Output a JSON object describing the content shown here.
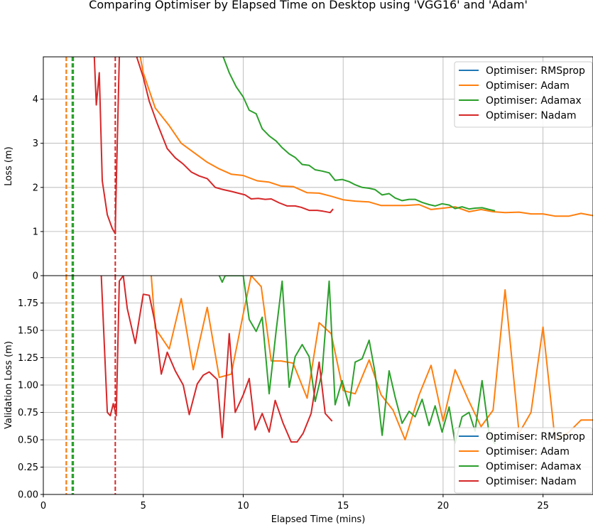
{
  "chart_data": {
    "type": "line",
    "title": "Comparing Optimiser by Elapsed Time on Desktop using 'VGG16' and 'Adam'",
    "xlabel": "Elapsed Time (mins)",
    "xlim": [
      0,
      27.5
    ],
    "x_ticks": [
      "0",
      "5",
      "10",
      "15",
      "20",
      "25"
    ],
    "grid": true,
    "colors": {
      "Optimiser: RMSprop": "#1f77b4",
      "Optimiser: Adam": "#ff7f0e",
      "Optimiser: Adamax": "#2ca02c",
      "Optimiser: Nadam": "#d62728"
    },
    "vlines": [
      {
        "series": "Optimiser: RMSprop",
        "x": 1.15,
        "style": "dashed"
      },
      {
        "series": "Optimiser: Adam",
        "x": 1.15,
        "style": "dashed"
      },
      {
        "series": "Optimiser: Adam",
        "x": 1.45,
        "style": "dashed"
      },
      {
        "series": "Optimiser: Adamax",
        "x": 1.45,
        "style": "dashed"
      },
      {
        "series": "Optimiser: Adamax",
        "x": 1.5,
        "style": "dashed"
      },
      {
        "series": "Optimiser: Nadam",
        "x": 3.6,
        "style": "dashed"
      }
    ],
    "panels": [
      {
        "ylabel": "Loss (m)",
        "ylim": [
          0,
          4.96
        ],
        "y_ticks": [
          "0",
          "1",
          "2",
          "3",
          "4"
        ],
        "legend": "top-right",
        "series": [
          {
            "name": "Optimiser: RMSprop",
            "x": [],
            "y": []
          },
          {
            "name": "Optimiser: Adam",
            "x": [
              4.85,
              5.0,
              5.6,
              6.3,
              6.9,
              7.5,
              8.2,
              8.8,
              9.4,
              10.0,
              10.7,
              11.3,
              11.9,
              12.5,
              13.2,
              13.8,
              14.4,
              15.0,
              15.6,
              16.3,
              16.9,
              17.5,
              18.1,
              18.8,
              19.4,
              20.0,
              20.6,
              21.3,
              21.9,
              22.5,
              23.1,
              23.8,
              24.4,
              25.0,
              25.6,
              26.3,
              26.9,
              27.5
            ],
            "y": [
              4.96,
              4.6,
              3.8,
              3.4,
              3.0,
              2.8,
              2.57,
              2.42,
              2.3,
              2.27,
              2.15,
              2.12,
              2.03,
              2.02,
              1.88,
              1.87,
              1.8,
              1.72,
              1.69,
              1.67,
              1.59,
              1.59,
              1.59,
              1.61,
              1.5,
              1.53,
              1.56,
              1.45,
              1.5,
              1.45,
              1.43,
              1.44,
              1.4,
              1.4,
              1.35,
              1.35,
              1.41,
              1.36
            ]
          },
          {
            "name": "Optimiser: Adamax",
            "x": [
              9.0,
              9.3,
              9.65,
              10.0,
              10.3,
              10.65,
              10.95,
              11.3,
              11.65,
              11.95,
              12.3,
              12.6,
              12.95,
              13.3,
              13.6,
              13.95,
              14.3,
              14.6,
              14.95,
              15.3,
              15.6,
              15.95,
              16.3,
              16.6,
              16.95,
              17.3,
              17.6,
              17.95,
              18.3,
              18.6,
              18.95,
              19.3,
              19.6,
              19.95,
              20.3,
              20.6,
              20.95,
              21.3,
              21.6,
              21.95,
              22.3,
              22.6
            ],
            "y": [
              4.96,
              4.6,
              4.28,
              4.05,
              3.75,
              3.67,
              3.33,
              3.17,
              3.05,
              2.9,
              2.76,
              2.68,
              2.52,
              2.5,
              2.4,
              2.37,
              2.33,
              2.16,
              2.18,
              2.13,
              2.06,
              2.0,
              1.98,
              1.95,
              1.83,
              1.86,
              1.76,
              1.7,
              1.73,
              1.73,
              1.66,
              1.61,
              1.58,
              1.63,
              1.6,
              1.52,
              1.56,
              1.51,
              1.53,
              1.54,
              1.5,
              1.47
            ]
          },
          {
            "name": "Optimiser: Nadam",
            "x": [
              2.55,
              2.65,
              2.8,
              2.95,
              3.2,
              3.45,
              3.6,
              3.62,
              3.8,
              4.0,
              4.5,
              5.0,
              5.3,
              5.7,
              6.2,
              6.6,
              7.0,
              7.4,
              7.8,
              8.2,
              8.6,
              9.0,
              9.4,
              9.75,
              10.1,
              10.4,
              10.75,
              11.1,
              11.4,
              11.8,
              12.2,
              12.6,
              12.9,
              13.3,
              13.7,
              14.0,
              14.35,
              14.5
            ],
            "y": [
              4.96,
              3.87,
              4.6,
              2.15,
              1.38,
              1.07,
              0.95,
              1.5,
              4.96,
              5.5,
              5.2,
              4.5,
              3.95,
              3.45,
              2.88,
              2.67,
              2.53,
              2.35,
              2.26,
              2.2,
              2.0,
              1.95,
              1.91,
              1.87,
              1.83,
              1.74,
              1.75,
              1.73,
              1.74,
              1.65,
              1.58,
              1.58,
              1.55,
              1.48,
              1.48,
              1.46,
              1.43,
              1.51
            ]
          }
        ]
      },
      {
        "ylabel": "Validation Loss (m)",
        "ylim": [
          0,
          2.0
        ],
        "y_ticks": [
          "0.00",
          "0.25",
          "0.50",
          "0.75",
          "1.00",
          "1.25",
          "1.50",
          "1.75"
        ],
        "legend": "bottom-right",
        "series": [
          {
            "name": "Optimiser: RMSprop",
            "x": [],
            "y": []
          },
          {
            "name": "Optimiser: Adam",
            "x": [
              5.4,
              5.6,
              6.3,
              6.9,
              7.5,
              8.2,
              8.8,
              9.4,
              10.0,
              10.4,
              10.9,
              11.4,
              11.9,
              12.5,
              13.2,
              13.8,
              14.4,
              15.0,
              15.6,
              16.3,
              16.9,
              17.5,
              18.1,
              18.8,
              19.4,
              20.0,
              20.6,
              21.3,
              21.9,
              22.5,
              23.1,
              23.8,
              24.4,
              25.0,
              25.6,
              26.3,
              26.9,
              27.5
            ],
            "y": [
              2.0,
              1.52,
              1.33,
              1.79,
              1.14,
              1.71,
              1.07,
              1.1,
              1.65,
              2.0,
              1.9,
              1.22,
              1.22,
              1.2,
              0.88,
              1.57,
              1.47,
              0.95,
              0.92,
              1.23,
              0.91,
              0.77,
              0.5,
              0.91,
              1.18,
              0.67,
              1.14,
              0.85,
              0.62,
              0.77,
              1.87,
              0.56,
              0.75,
              1.53,
              0.5,
              0.57,
              0.68,
              0.68
            ]
          },
          {
            "name": "Optimiser: Adamax",
            "x": [
              8.8,
              8.95,
              9.1,
              10.0,
              10.3,
              10.65,
              10.95,
              11.3,
              11.65,
              11.95,
              12.3,
              12.6,
              12.95,
              13.3,
              13.6,
              13.95,
              14.3,
              14.6,
              14.95,
              15.3,
              15.6,
              15.95,
              16.3,
              16.6,
              16.95,
              17.3,
              17.6,
              17.95,
              18.3,
              18.6,
              18.95,
              19.3,
              19.6,
              19.95,
              20.3,
              20.6,
              20.95,
              21.3,
              21.6,
              21.95,
              22.3,
              22.6
            ],
            "y": [
              2.0,
              1.94,
              2.0,
              2.0,
              1.6,
              1.49,
              1.62,
              0.92,
              1.5,
              1.95,
              0.98,
              1.26,
              1.37,
              1.26,
              0.85,
              1.12,
              1.95,
              0.82,
              1.04,
              0.81,
              1.21,
              1.24,
              1.41,
              1.11,
              0.54,
              1.13,
              0.89,
              0.65,
              0.76,
              0.71,
              0.87,
              0.63,
              0.81,
              0.57,
              0.8,
              0.47,
              0.71,
              0.75,
              0.58,
              1.04,
              0.56,
              0.46
            ]
          },
          {
            "name": "Optimiser: Nadam",
            "x": [
              2.9,
              3.2,
              3.35,
              3.5,
              3.65,
              3.8,
              4.0,
              4.2,
              4.6,
              5.0,
              5.3,
              5.6,
              5.9,
              6.2,
              6.6,
              7.0,
              7.3,
              7.7,
              8.0,
              8.3,
              8.7,
              8.95,
              9.3,
              9.6,
              10.0,
              10.3,
              10.6,
              10.95,
              11.3,
              11.6,
              12.0,
              12.4,
              12.7,
              13.0,
              13.4,
              13.8,
              14.1,
              14.45
            ],
            "y": [
              2.0,
              0.75,
              0.72,
              0.83,
              0.72,
              1.95,
              2.0,
              1.7,
              1.38,
              1.83,
              1.82,
              1.56,
              1.1,
              1.3,
              1.13,
              1.0,
              0.73,
              1.01,
              1.09,
              1.12,
              1.05,
              0.52,
              1.47,
              0.75,
              0.91,
              1.06,
              0.59,
              0.74,
              0.57,
              0.86,
              0.65,
              0.48,
              0.48,
              0.56,
              0.74,
              1.21,
              0.74,
              0.67
            ]
          }
        ]
      }
    ]
  }
}
